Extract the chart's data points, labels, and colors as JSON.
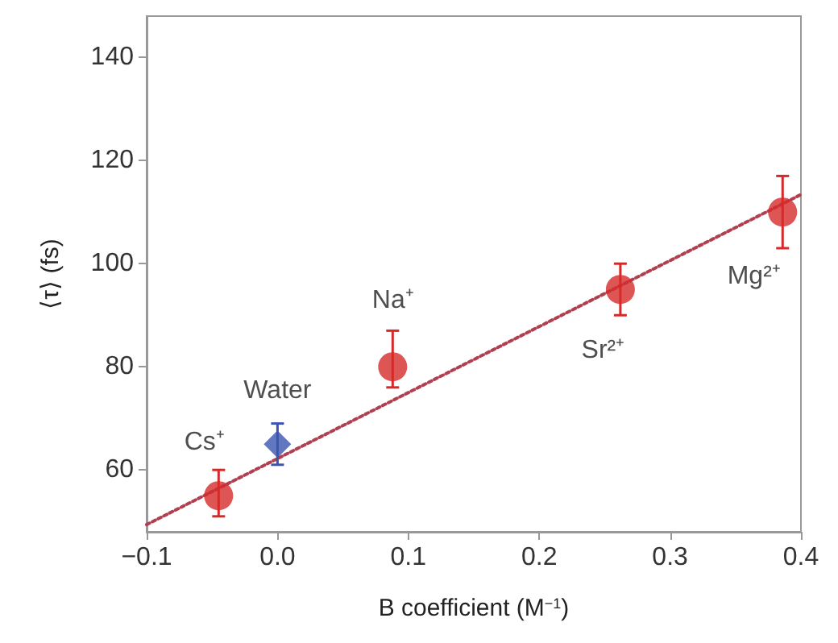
{
  "chart_data": {
    "type": "scatter",
    "xlabel": "B coefficient (M$^{−1}$)",
    "ylabel": "⟨τ⟩ (fs)",
    "xlim": [
      -0.1,
      0.4
    ],
    "xticks": [
      {
        "value": -0.1,
        "label": "−0.1"
      },
      {
        "value": 0,
        "label": "0.0"
      },
      {
        "value": 0.1,
        "label": "0.1"
      },
      {
        "value": 0.2,
        "label": "0.2"
      },
      {
        "value": 0.3,
        "label": "0.3"
      },
      {
        "value": 0.4,
        "label": "0.4"
      }
    ],
    "ylim": [
      48,
      148
    ],
    "yticks": [
      60,
      80,
      100,
      120,
      140
    ],
    "grid": false,
    "series": [
      {
        "marker": "circle",
        "color": "#d42a2a",
        "x": [
          -0.045,
          0.088,
          0.262,
          0.386
        ],
        "values": [
          55,
          80,
          95,
          110
        ],
        "errors": [
          [
            51,
            60
          ],
          [
            76,
            87
          ],
          [
            90,
            100
          ],
          [
            103,
            117
          ]
        ]
      },
      {
        "marker": "diamond",
        "color": "#3a55b0",
        "x": [
          0.0
        ],
        "values": [
          65
        ],
        "errors": [
          [
            61,
            69
          ]
        ]
      },
      {
        "type": "line",
        "marker": "none",
        "line_style": "dotted",
        "color": "#b04050",
        "x": [
          -0.1,
          0.4
        ],
        "values": [
          49.4,
          113.4
        ]
      }
    ],
    "annotations": [
      {
        "text": "Cs⁺",
        "x": -0.045,
        "y": 55
      },
      {
        "text": "Water",
        "x": 0.0,
        "y": 65
      },
      {
        "text": "Na⁺",
        "x": 0.088,
        "y": 80
      },
      {
        "text": "Sr²⁺",
        "x": 0.262,
        "y": 95
      },
      {
        "text": "Mg²⁺",
        "x": 0.386,
        "y": 110
      }
    ]
  }
}
